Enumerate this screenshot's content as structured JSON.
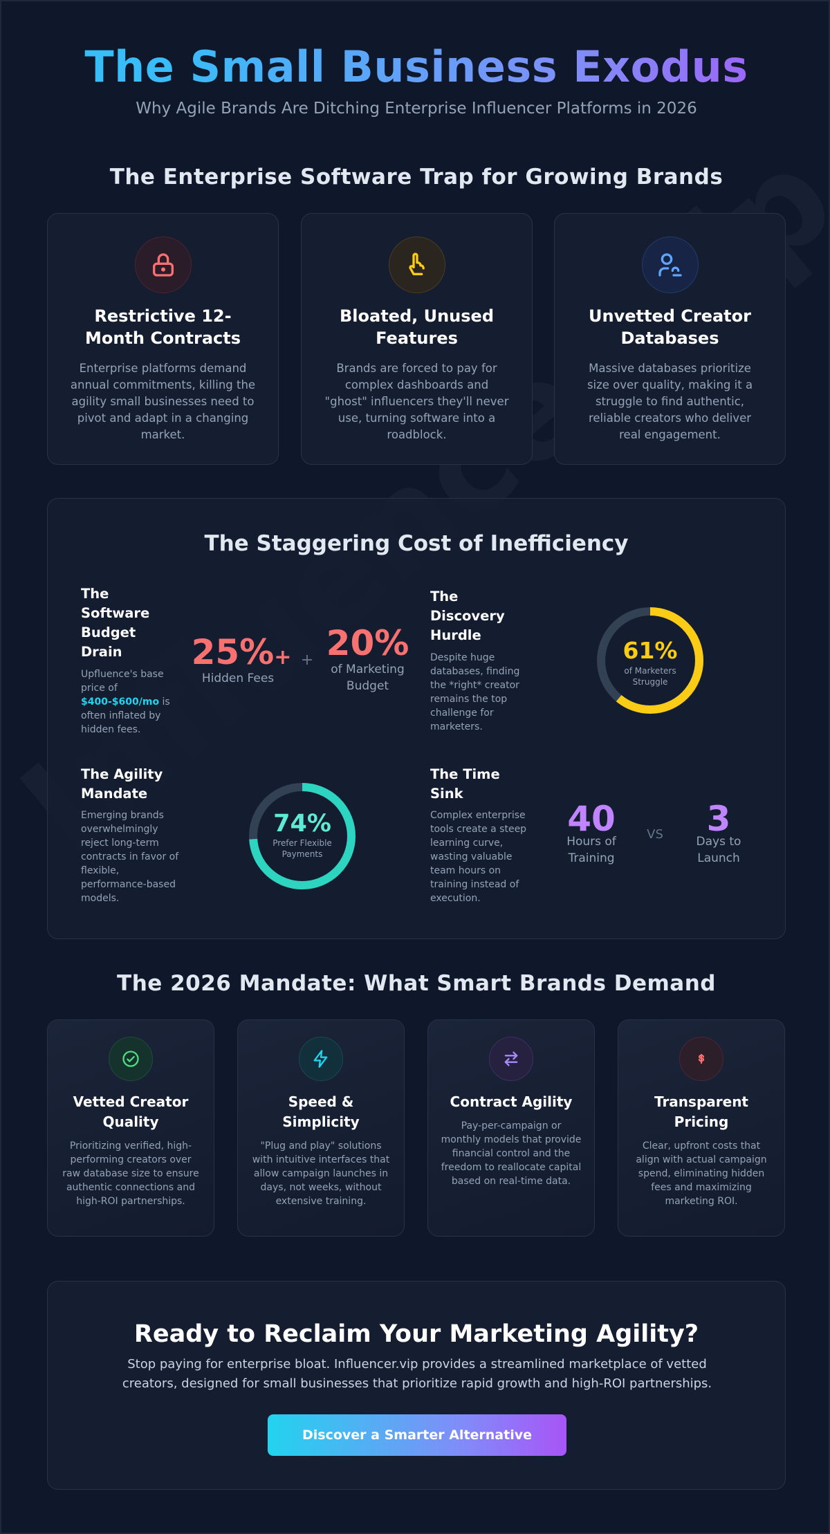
{
  "hero": {
    "title": "The Small Business Exodus",
    "subtitle": "Why Agile Brands Are Ditching Enterprise Influencer Platforms in 2026"
  },
  "watermark": "Influencer.vip",
  "trap": {
    "title": "The Enterprise Software Trap for Growing Brands",
    "cards": [
      {
        "title": "Restrictive 12-Month Contracts",
        "text": "Enterprise platforms demand annual commitments, killing the agility small businesses need to pivot and adapt in a changing market.",
        "icon": "lock-icon",
        "color": "#f87171"
      },
      {
        "title": "Bloated, Unused Features",
        "text": "Brands are forced to pay for complex dashboards and \"ghost\" influencers they'll never use, turning software into a roadblock.",
        "icon": "pointer-hand-icon",
        "color": "#facc15"
      },
      {
        "title": "Unvetted Creator Databases",
        "text": "Massive databases prioritize size over quality, making it a struggle to find authentic, reliable creators who deliver real engagement.",
        "icon": "user-search-icon",
        "color": "#60a5fa"
      }
    ]
  },
  "cost": {
    "title": "The Staggering Cost of Inefficiency",
    "budget": {
      "heading": "The Software Budget Drain",
      "desc_prefix": "Upfluence's base price of",
      "desc_highlight": "$400-$600/mo",
      "desc_suffix": "is often inflated by hidden fees.",
      "stat1_value": "25%",
      "stat1_plus": "+",
      "stat1_label": "Hidden Fees",
      "plus_sign": "+",
      "stat2_value": "20%",
      "stat2_label": "of Marketing Budget"
    },
    "discovery": {
      "heading": "The Discovery Hurdle",
      "desc": "Despite huge databases, finding the *right* creator remains the top challenge for marketers.",
      "percent": 61,
      "value": "61%",
      "label": "of Marketers Struggle",
      "color": "#facc15"
    },
    "agility": {
      "heading": "The Agility Mandate",
      "desc": "Emerging brands overwhelmingly reject long-term contracts in favor of flexible, performance-based models.",
      "percent": 74,
      "value": "74%",
      "label": "Prefer Flexible Payments",
      "color": "#2dd4bf"
    },
    "time": {
      "heading": "The Time Sink",
      "desc": "Complex enterprise tools create a steep learning curve, wasting valuable team hours on training instead of execution.",
      "stat1_value": "40",
      "stat1_label": "Hours of Training",
      "vs": "VS",
      "stat2_value": "3",
      "stat2_label": "Days to Launch"
    }
  },
  "mandate": {
    "title": "The 2026 Mandate: What Smart Brands Demand",
    "cards": [
      {
        "title": "Vetted Creator Quality",
        "text": "Prioritizing verified, high-performing creators over raw database size to ensure authentic connections and high-ROI partnerships.",
        "icon": "check-circle-icon",
        "color": "#4ade80"
      },
      {
        "title": "Speed & Simplicity",
        "text": "\"Plug and play\" solutions with intuitive interfaces that allow campaign launches in days, not weeks, without extensive training.",
        "icon": "lightning-icon",
        "color": "#22d3ee"
      },
      {
        "title": "Contract Agility",
        "text": "Pay-per-campaign or monthly models that provide financial control and the freedom to reallocate capital based on real-time data.",
        "icon": "swap-arrows-icon",
        "color": "#a78bfa"
      },
      {
        "title": "Transparent Pricing",
        "text": "Clear, upfront costs that align with actual campaign spend, eliminating hidden fees and maximizing marketing ROI.",
        "icon": "dollar-icon",
        "color": "#f87171"
      }
    ]
  },
  "cta": {
    "title": "Ready to Reclaim Your Marketing Agility?",
    "text": "Stop paying for enterprise bloat. Influencer.vip provides a streamlined marketplace of vetted creators, designed for small businesses that prioritize rapid growth and high-ROI partnerships.",
    "button": "Discover a Smarter Alternative"
  }
}
